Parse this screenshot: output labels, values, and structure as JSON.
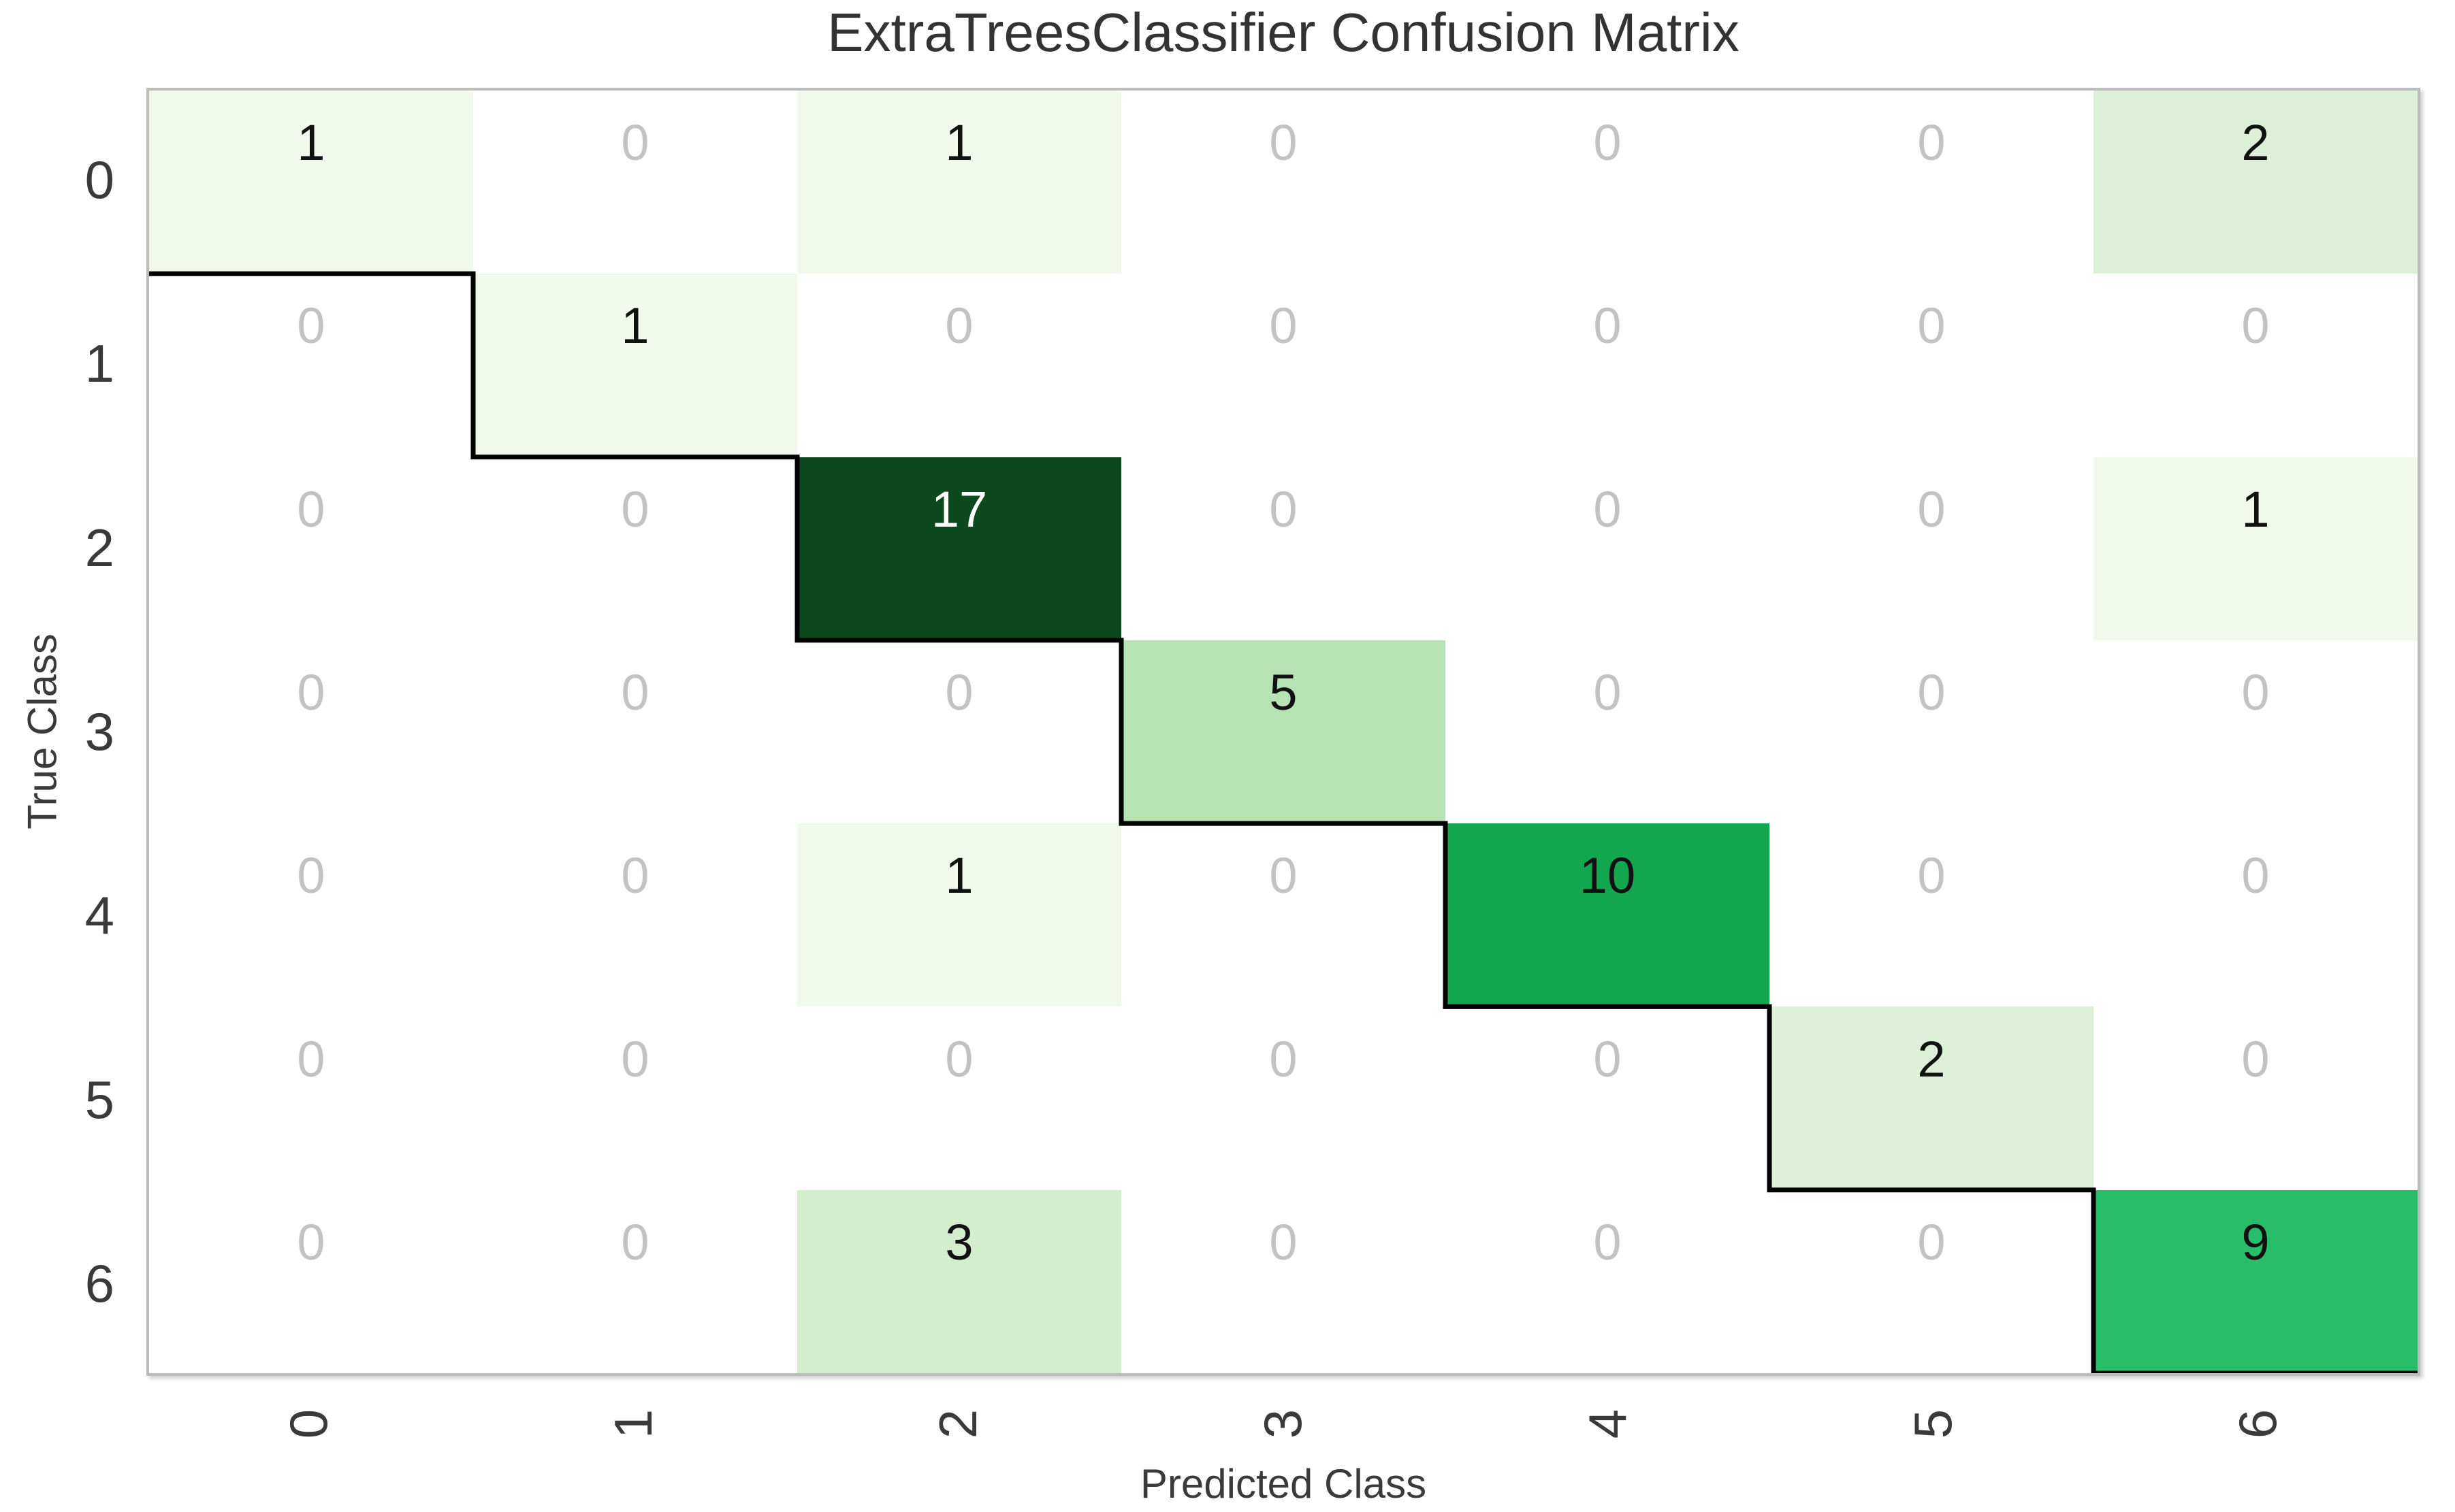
{
  "title": "ExtraTreesClassifier Confusion Matrix",
  "chart_data": {
    "type": "heatmap",
    "subtype": "confusion_matrix",
    "title": "ExtraTreesClassifier Confusion Matrix",
    "xlabel": "Predicted Class",
    "ylabel": "True Class",
    "x_tick_labels": [
      "0",
      "1",
      "2",
      "3",
      "4",
      "5",
      "6"
    ],
    "y_tick_labels": [
      "0",
      "1",
      "2",
      "3",
      "4",
      "5",
      "6"
    ],
    "matrix": [
      [
        1,
        0,
        1,
        0,
        0,
        0,
        2
      ],
      [
        0,
        1,
        0,
        0,
        0,
        0,
        0
      ],
      [
        0,
        0,
        17,
        0,
        0,
        0,
        1
      ],
      [
        0,
        0,
        0,
        5,
        0,
        0,
        0
      ],
      [
        0,
        0,
        1,
        0,
        10,
        0,
        0
      ],
      [
        0,
        0,
        0,
        0,
        0,
        2,
        0
      ],
      [
        0,
        0,
        3,
        0,
        0,
        0,
        9
      ]
    ],
    "colormap": "Greens",
    "value_colors": {
      "0": "#ffffff",
      "1": "#f0f9ec",
      "2": "#dbf0d6",
      "3": "#d3eecd",
      "5": "#b7e2b3",
      "9": "#28bd69",
      "10": "#13a750",
      "17": "#0c4a1d"
    },
    "zero_text_color": "#c3c3c3",
    "value_text_color": "#111111",
    "light_text_values": [
      17
    ],
    "light_text_color": "#ffffff",
    "diagonal_line_color": "#000000",
    "spine_color": "#bcbcbc",
    "x_tick_rotation_deg": 90,
    "grid": "off",
    "legend": "off"
  }
}
